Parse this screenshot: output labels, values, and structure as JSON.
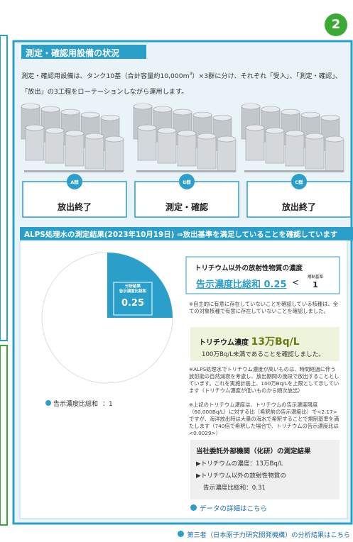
{
  "badge": "2",
  "section": {
    "title": "測定・確認用設備の状況",
    "description": [
      "測定・確認用設備は、タンク10基（合計容量約10,000m",
      "3",
      "）×3群に分け、それぞれ「受入」、「測定・確認」、「放出」の3工程をローテーションしながら運用します。"
    ],
    "groups": [
      {
        "label": "A群",
        "status": "放出終了"
      },
      {
        "label": "B群",
        "status": "測定・確認"
      },
      {
        "label": "C群",
        "status": "放出終了"
      }
    ]
  },
  "results": {
    "header": "ALPS処理水の測定結果(2023年10月19日) ⇒放出基準を満足していることを確認しています",
    "pie": {
      "label_lines": [
        "分析結果",
        "告示濃度比総和"
      ],
      "value": 0.25,
      "total": 1,
      "legend_label": "告示濃度比総和",
      "legend_sep": "："
    },
    "other_nuclides": {
      "title": "トリチウム以外の放射性物質の濃度",
      "main": "告示濃度比総和 0.25",
      "compare": "<",
      "limit_label": "規制基準",
      "limit": "1",
      "note": "※自主的に有意に存在していないことを確認している核種は、全ての対象核種で有意に存在していないことを確認しました。"
    },
    "tritium": {
      "title": "トリチウム濃度",
      "value": "13万Bq/L",
      "text": "100万Bq/L未満であることを確認しました。",
      "notes": [
        "※ALPS処理水でトリチウム濃度が高いものは、時間経過に伴う放射能の自然減衰を考慮し、放出期間の後段で放出することとしています。これを実施計画上、100万Bq/Lを上限として示しています（トリチウム濃度が低いものから順次放出）",
        "※上記のトリチウム濃度は、トリチウムの告示濃度限度（60,000Bq/L）に対する比（希釈前の告示濃度比）で<2.17>ですが、海洋放出時は大量の海水で希釈することで規制基準を満たします（740倍で希釈した場合で、トリチウムの告示濃度比は<0.0029>）"
      ]
    },
    "third_party": {
      "title": "当社委託外部機関（化研）の測定結果",
      "lines": [
        "▶トリチウムの濃度：13万Bq/L",
        "▶トリチウム以外の放射性物質の",
        "告示濃度比総和：0.31"
      ]
    },
    "link": "データの詳細はこちら"
  },
  "footer_link": "第三者（日本原子力研究開発機構）の分析結果はこちら"
}
